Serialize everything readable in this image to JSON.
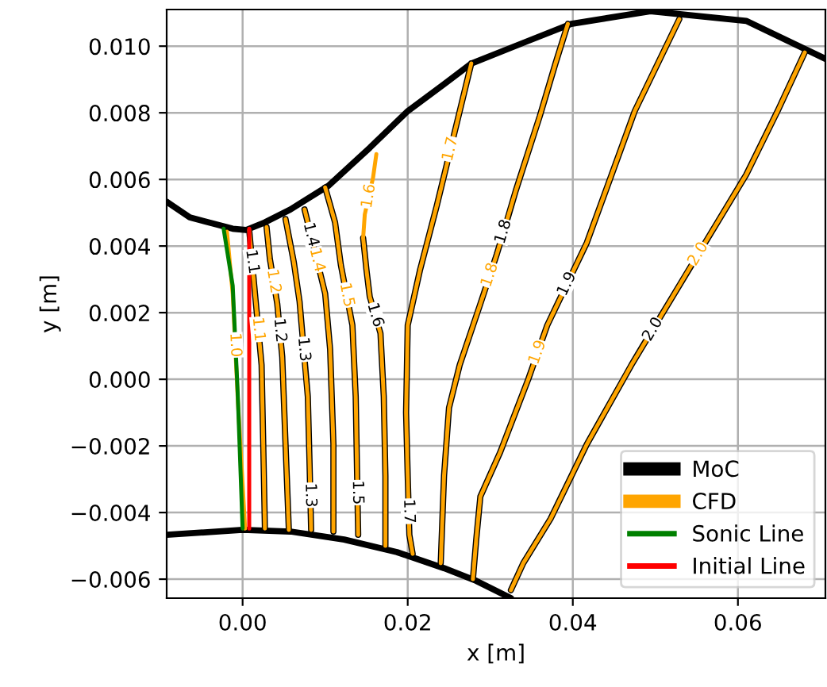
{
  "chart_data": {
    "type": "line",
    "xlabel": "x [m]",
    "ylabel": "y [m]",
    "xlim": [
      -0.0092,
      0.0706
    ],
    "ylim": [
      -0.00657,
      0.0111
    ],
    "xticks": [
      {
        "value": 0,
        "label": "0.00"
      },
      {
        "value": 0.02,
        "label": "0.02"
      },
      {
        "value": 0.04,
        "label": "0.04"
      },
      {
        "value": 0.06,
        "label": "0.06"
      }
    ],
    "yticks": [
      {
        "value": -0.006,
        "label": "−0.006"
      },
      {
        "value": -0.004,
        "label": "−0.004"
      },
      {
        "value": -0.002,
        "label": "−0.002"
      },
      {
        "value": 0,
        "label": "0.000"
      },
      {
        "value": 0.002,
        "label": "0.002"
      },
      {
        "value": 0.004,
        "label": "0.004"
      },
      {
        "value": 0.006,
        "label": "0.006"
      },
      {
        "value": 0.008,
        "label": "0.008"
      },
      {
        "value": 0.01,
        "label": "0.010"
      }
    ],
    "grid": true,
    "legend": "bottom right",
    "marker": "none",
    "line_style": "solid",
    "annotations": [
      {
        "text": "1.1",
        "x": 0.00115,
        "y": 0.00353
      },
      {
        "text": "1.2",
        "x": 0.0045,
        "y": 0.00147
      },
      {
        "text": "1.3",
        "x": 0.0082,
        "y": -0.00348
      },
      {
        "text": "1.4",
        "x": 0.00825,
        "y": 0.00434
      },
      {
        "text": "1.5",
        "x": 0.01391,
        "y": -0.0034
      },
      {
        "text": "1.6",
        "x": 0.01605,
        "y": 0.00193
      },
      {
        "text": "1.7",
        "x": 0.02012,
        "y": -0.00396
      },
      {
        "text": "1.8",
        "x": 0.0316,
        "y": 0.00443
      },
      {
        "text": "1.9",
        "x": 0.0393,
        "y": 0.00286
      },
      {
        "text": "2.0",
        "x": 0.0497,
        "y": 0.0015
      },
      {
        "text": "1.0",
        "x": -0.0009,
        "y": 0.00103
      },
      {
        "text": "1.1",
        "x": 0.0019,
        "y": 0.0015
      },
      {
        "text": "1.2",
        "x": 0.00375,
        "y": 0.00294
      },
      {
        "text": "1.3",
        "x": 0.0074,
        "y": 0.0009
      },
      {
        "text": "1.4",
        "x": 0.009,
        "y": 0.00358
      },
      {
        "text": "1.5",
        "x": 0.0126,
        "y": 0.00253
      },
      {
        "text": "1.6",
        "x": 0.0153,
        "y": 0.0055
      },
      {
        "text": "1.7",
        "x": 0.02518,
        "y": 0.00691
      },
      {
        "text": "1.8",
        "x": 0.02996,
        "y": 0.00313
      },
      {
        "text": "1.9",
        "x": 0.03575,
        "y": 0.00081
      },
      {
        "text": "2.0",
        "x": 0.0552,
        "y": 0.00376
      }
    ],
    "series": [
      {
        "color": "#000000",
        "x": [
          -0.0092,
          -0.0064,
          -0.0012,
          0.0004,
          0.0027,
          0.0058,
          0.0104,
          0.0154,
          0.02,
          0.0244,
          0.0277,
          0.034,
          0.0398,
          0.0494,
          0.061,
          0.0706
        ],
        "values": [
          0.00533,
          0.00486,
          0.00452,
          0.00448,
          0.00471,
          0.0051,
          0.00581,
          0.00695,
          0.00805,
          0.00886,
          0.00948,
          0.0101,
          0.01067,
          0.01105,
          0.01076,
          0.00962
        ]
      },
      {
        "color": "#000000",
        "x": [
          -0.0092,
          0,
          0.0058,
          0.0123,
          0.0187,
          0.0244,
          0.0283,
          0.0325
        ],
        "values": [
          -0.00467,
          -0.00452,
          -0.00457,
          -0.00481,
          -0.00519,
          -0.00567,
          -0.00605,
          -0.00657
        ]
      },
      {
        "name": "MoC",
        "color": "#000000",
        "x": [
          0.0008,
          0.00136,
          0.0015,
          0.0023,
          0.0025,
          0.0027
        ],
        "values": [
          0.00448,
          0.00295,
          0.00257,
          0.00043,
          -0.00195,
          -0.00448
        ]
      },
      {
        "color": "#000000",
        "x": [
          0.0029,
          0.0033,
          0.0042,
          0.00468,
          0.0048,
          0.0052,
          0.0056
        ],
        "values": [
          0.00457,
          0.00362,
          0.00226,
          0.00099,
          0.00067,
          -0.00195,
          -0.00452
        ]
      },
      {
        "color": "#000000",
        "x": [
          0.0052,
          0.0062,
          0.0069,
          0.0079,
          0.0081,
          0.00826,
          0.0083
        ],
        "values": [
          0.00481,
          0.00352,
          0.00233,
          -0.00052,
          -0.00243,
          -0.0041,
          -0.00452
        ]
      },
      {
        "color": "#000000",
        "x": [
          0.0075,
          0.00775,
          0.01,
          0.0106,
          0.011,
          0.011
        ],
        "values": [
          0.0051,
          0.00485,
          0.00257,
          0.0009,
          -0.00195,
          -0.00457
        ]
      },
      {
        "color": "#000000",
        "x": [
          0.01,
          0.0112,
          0.0119,
          0.0133,
          0.0137,
          0.01397,
          0.014
        ],
        "values": [
          0.00576,
          0.00471,
          0.00343,
          0.00162,
          -0.00052,
          -0.00426,
          -0.00467
        ]
      },
      {
        "color": "#000000",
        "x": [
          0.0146,
          0.015,
          0.0154,
          0.0165,
          0.0167,
          0.0171,
          0.0173,
          0.0173
        ],
        "values": [
          0.00424,
          0.00329,
          0.00248,
          0.00155,
          0.00138,
          -0.00052,
          -0.0029,
          -0.005
        ]
      },
      {
        "color": "#000000",
        "x": [
          0.0277,
          0.0263,
          0.0235,
          0.0215,
          0.02,
          0.0198,
          0.02,
          0.02018,
          0.0202,
          0.0206
        ],
        "values": [
          0.00948,
          0.00805,
          0.00519,
          0.00329,
          0.00162,
          -0.001,
          -0.0029,
          -0.00449,
          -0.00467,
          -0.00524
        ]
      },
      {
        "color": "#000000",
        "x": [
          0.0394,
          0.0379,
          0.036,
          0.0331,
          0.0322,
          0.0308,
          0.0287,
          0.0263,
          0.025,
          0.0244,
          0.024
        ],
        "values": [
          0.01067,
          0.00948,
          0.0079,
          0.00567,
          0.00491,
          0.00376,
          0.00219,
          0.00043,
          -0.00086,
          -0.0029,
          -0.00552
        ]
      },
      {
        "color": "#000000",
        "x": [
          0.0529,
          0.0475,
          0.0417,
          0.0381,
          0.0369,
          0.0346,
          0.0312,
          0.0288,
          0.0283,
          0.0279
        ],
        "values": [
          0.01081,
          0.00805,
          0.0041,
          0.00224,
          0.00162,
          0,
          -0.00219,
          -0.00352,
          -0.00481,
          -0.006
        ]
      },
      {
        "color": "#000000",
        "x": [
          0.0681,
          0.0648,
          0.061,
          0.0581,
          0.0523,
          0.0484,
          0.0471,
          0.0417,
          0.0373,
          0.034,
          0.0325
        ],
        "values": [
          0.00981,
          0.00805,
          0.00614,
          0.00495,
          0.00257,
          0.00097,
          0.00043,
          -0.00195,
          -0.00419,
          -0.00552,
          -0.00633
        ]
      },
      {
        "name": "CFD",
        "color": "#ffa500",
        "x": [
          -0.0019,
          -0.0012,
          -0.00078,
          -0.0006,
          0.0003
        ],
        "values": [
          0.00443,
          0.00257,
          0.00041,
          -0.00052,
          -0.00448
        ]
      },
      {
        "color": "#ffa500",
        "x": [
          0.0008,
          0.0015,
          0.00214,
          0.0023,
          0.0025,
          0.0027
        ],
        "values": [
          0.00448,
          0.00257,
          0.00086,
          0.00043,
          -0.00195,
          -0.00448
        ]
      },
      {
        "color": "#ffa500",
        "x": [
          0.0029,
          0.0033,
          0.00402,
          0.0042,
          0.0048,
          0.0052,
          0.0056
        ],
        "values": [
          0.00457,
          0.00362,
          0.00253,
          0.00226,
          0.00067,
          -0.00195,
          -0.00452
        ]
      },
      {
        "color": "#ffa500",
        "x": [
          0.0052,
          0.0062,
          0.0069,
          0.0077,
          0.0079,
          0.0081,
          0.0083
        ],
        "values": [
          0.00481,
          0.00352,
          0.00233,
          0,
          -0.00052,
          -0.00243,
          -0.00452
        ]
      },
      {
        "color": "#ffa500",
        "x": [
          0.0075,
          0.0095,
          0.01,
          0.0106,
          0.011,
          0.011
        ],
        "values": [
          0.0051,
          0.00308,
          0.00257,
          0.0009,
          -0.00195,
          -0.00457
        ]
      },
      {
        "color": "#ffa500",
        "x": [
          0.01,
          0.0112,
          0.0119,
          0.01302,
          0.0133,
          0.0137,
          0.014
        ],
        "values": [
          0.00576,
          0.00471,
          0.00343,
          0.00198,
          0.00162,
          -0.00052,
          -0.00467
        ]
      },
      {
        "color": "#ffa500",
        "x": [
          0.0162,
          0.0158,
          0.0148,
          0.0146,
          0.015,
          0.0154,
          0.0167,
          0.0171,
          0.0173,
          0.0173
        ],
        "values": [
          0.00676,
          0.00605,
          0.00495,
          0.00424,
          0.00329,
          0.00248,
          0.00138,
          -0.00052,
          -0.0029,
          -0.005
        ]
      },
      {
        "color": "#ffa500",
        "x": [
          0.0277,
          0.0263,
          0.02462,
          0.0235,
          0.0215,
          0.02,
          0.0198,
          0.02,
          0.0202,
          0.0206
        ],
        "values": [
          0.00948,
          0.00805,
          0.00633,
          0.00519,
          0.00329,
          0.00162,
          -0.001,
          -0.0029,
          -0.00467,
          -0.00524
        ]
      },
      {
        "color": "#ffa500",
        "x": [
          0.0394,
          0.0379,
          0.036,
          0.0331,
          0.0308,
          0.02923,
          0.0287,
          0.0263,
          0.025,
          0.0244,
          0.024
        ],
        "values": [
          0.01067,
          0.00948,
          0.0079,
          0.00567,
          0.00376,
          0.00258,
          0.00219,
          0.00043,
          -0.00086,
          -0.0029,
          -0.00552
        ]
      },
      {
        "color": "#ffa500",
        "x": [
          0.0529,
          0.0475,
          0.0417,
          0.0369,
          0.03506,
          0.0346,
          0.0312,
          0.0288,
          0.0283,
          0.0279
        ],
        "values": [
          0.01081,
          0.00805,
          0.0041,
          0.00162,
          0.00032,
          0,
          -0.00219,
          -0.00352,
          -0.00481,
          -0.006
        ]
      },
      {
        "color": "#ffa500",
        "x": [
          0.0681,
          0.0648,
          0.061,
          0.0581,
          0.05375,
          0.0523,
          0.0471,
          0.0417,
          0.0373,
          0.034,
          0.0325
        ],
        "values": [
          0.00981,
          0.00805,
          0.00614,
          0.00495,
          0.00317,
          0.00257,
          0.00043,
          -0.00195,
          -0.00419,
          -0.00552,
          -0.00633
        ]
      },
      {
        "name": "Sonic Line",
        "color": "#008000",
        "x": [
          -0.0023,
          -0.0012,
          -0.0006,
          0
        ],
        "values": [
          0.00452,
          0.00281,
          -0.00038,
          -0.00448
        ]
      },
      {
        "name": "Initial Line",
        "color": "#ff0000",
        "x": [
          0.0008,
          0.0008
        ],
        "values": [
          0.00452,
          -0.00448
        ]
      }
    ]
  }
}
